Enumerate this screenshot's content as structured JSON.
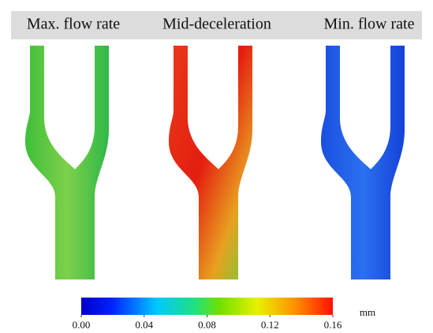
{
  "panels": [
    {
      "title": "Max. flow rate"
    },
    {
      "title": "Mid-deceleration"
    },
    {
      "title": "Min. flow rate"
    }
  ],
  "colorbar": {
    "lim": [
      0,
      0.16
    ],
    "ticks": [
      {
        "value": 0,
        "label": "0.00"
      },
      {
        "value": 0.04,
        "label": "0.04"
      },
      {
        "value": 0.08,
        "label": "0.08"
      },
      {
        "value": 0.12,
        "label": "0.12"
      },
      {
        "value": 0.16,
        "label": "0.16"
      }
    ],
    "unit": "mm"
  }
}
